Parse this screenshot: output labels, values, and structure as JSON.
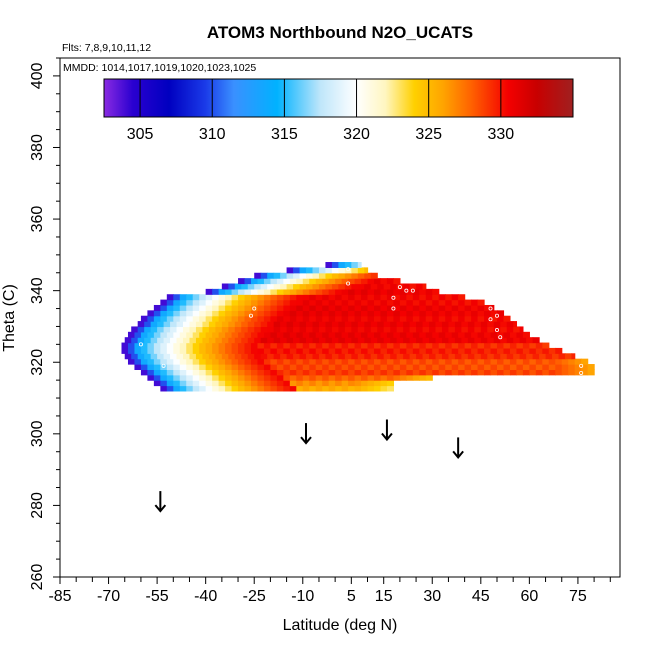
{
  "chart_data": {
    "type": "heatmap",
    "title": "ATOM3 Northbound N2O_UCATS",
    "annotations": {
      "flights": "Flts: 7,8,9,10,11,12",
      "dates": "MMDD: 1014,1017,1019,1020,1023,1025"
    },
    "xlabel": "Latitude (deg N)",
    "ylabel": "Theta (C)",
    "xlim": [
      -85,
      88
    ],
    "ylim": [
      260,
      405
    ],
    "x_ticks": [
      "-85",
      "-70",
      "-55",
      "-40",
      "-25",
      "-10",
      "5",
      "15",
      "30",
      "45",
      "60",
      "75"
    ],
    "y_ticks": [
      "260",
      "280",
      "300",
      "320",
      "340",
      "360",
      "380",
      "400"
    ],
    "colorbar": {
      "range": [
        302.5,
        335
      ],
      "ticks": [
        "305",
        "310",
        "315",
        "320",
        "325",
        "330"
      ],
      "colors": [
        [
          302.5,
          "#8a2be2"
        ],
        [
          304.5,
          "#2a00d0"
        ],
        [
          307,
          "#0000c0"
        ],
        [
          309.5,
          "#1a3ae8"
        ],
        [
          311.5,
          "#3a90ff"
        ],
        [
          314.5,
          "#00b2ff"
        ],
        [
          317.5,
          "#bfe6fa"
        ],
        [
          320,
          "#ffffff"
        ],
        [
          322,
          "#fff6c0"
        ],
        [
          324,
          "#ffd000"
        ],
        [
          326,
          "#ffa400"
        ],
        [
          328,
          "#ff6000"
        ],
        [
          330.5,
          "#f40000"
        ],
        [
          332.5,
          "#c80000"
        ],
        [
          335,
          "#a02020"
        ]
      ]
    },
    "field": {
      "lat_step": 2.0,
      "theta_step": 1.5,
      "rows": [
        [
          312.0,
          -54,
          18,
          326
        ],
        [
          313.5,
          -56,
          18,
          327
        ],
        [
          315.0,
          -58,
          30,
          328
        ],
        [
          316.5,
          -60,
          80,
          329
        ],
        [
          318.0,
          -62,
          80,
          329
        ],
        [
          319.5,
          -64,
          78,
          329
        ],
        [
          321.0,
          -65,
          74,
          330
        ],
        [
          322.5,
          -66,
          70,
          330
        ],
        [
          324.0,
          -66,
          66,
          330
        ],
        [
          325.5,
          -65,
          63,
          331
        ],
        [
          327.0,
          -64,
          60,
          331
        ],
        [
          328.5,
          -63,
          58,
          331
        ],
        [
          330.0,
          -61,
          56,
          331
        ],
        [
          331.5,
          -60,
          54,
          331
        ],
        [
          333.0,
          -58,
          52,
          331
        ],
        [
          334.5,
          -56,
          49,
          331
        ],
        [
          336.0,
          -54,
          46,
          331
        ],
        [
          337.5,
          -52,
          40,
          331
        ],
        [
          339.0,
          -40,
          32,
          331
        ],
        [
          340.5,
          -35,
          28,
          331
        ],
        [
          342.0,
          -30,
          20,
          331
        ],
        [
          343.5,
          -25,
          13,
          331
        ],
        [
          345.0,
          -15,
          10,
          330
        ],
        [
          346.5,
          -3,
          8,
          330
        ]
      ],
      "west_gradient": [
        [
          0,
          304
        ],
        [
          3,
          313
        ],
        [
          9,
          317
        ],
        [
          16,
          321
        ],
        [
          24,
          325
        ],
        [
          32,
          328
        ],
        [
          42,
          331
        ]
      ]
    },
    "data_markers": [
      [
        -60,
        325
      ],
      [
        -53,
        319
      ],
      [
        -25,
        335
      ],
      [
        -26,
        333
      ],
      [
        4,
        346
      ],
      [
        4,
        342
      ],
      [
        20,
        341
      ],
      [
        22,
        340
      ],
      [
        24,
        340
      ],
      [
        18,
        338
      ],
      [
        18,
        335
      ],
      [
        48,
        335
      ],
      [
        48,
        332
      ],
      [
        50,
        333
      ],
      [
        50,
        329
      ],
      [
        51,
        327
      ],
      [
        76,
        319
      ],
      [
        76,
        317
      ]
    ],
    "arrows": [
      -54,
      -9,
      16,
      38
    ]
  }
}
